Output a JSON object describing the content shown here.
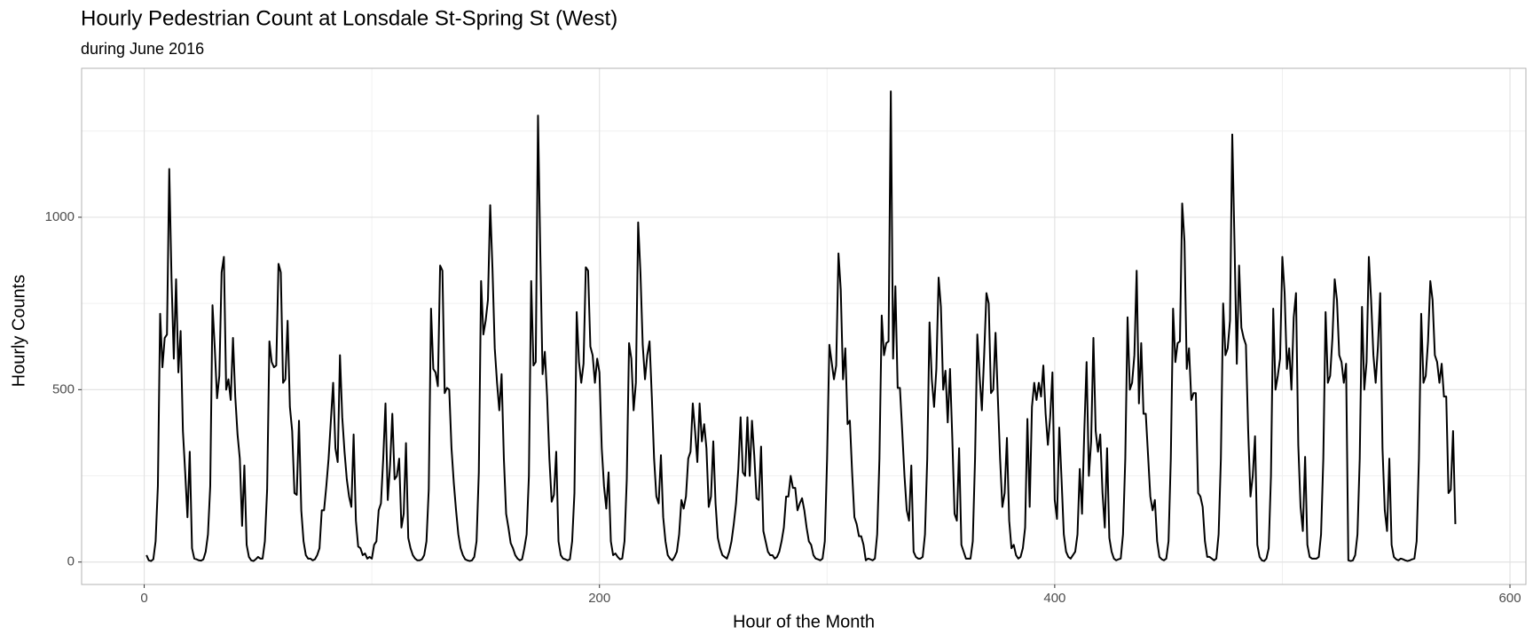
{
  "chart_data": {
    "type": "line",
    "title": "Hourly Pedestrian Count at Lonsdale St-Spring St (West)",
    "subtitle": "during June 2016",
    "xlabel": "Hour of the Month",
    "ylabel": "Hourly Counts",
    "color": "#000000",
    "grid": true,
    "xlim": [
      -27.5,
      607
    ],
    "ylim": [
      -65,
      1432
    ],
    "xticks": [
      0,
      200,
      400,
      600
    ],
    "yticks": [
      0,
      500,
      1000
    ],
    "x": [
      1,
      2,
      3,
      4,
      5,
      6,
      7,
      8,
      9,
      10,
      11,
      12,
      13,
      14,
      15,
      16,
      17,
      18,
      19,
      20,
      21,
      22,
      23,
      24,
      25,
      26,
      27,
      28,
      29,
      30,
      31,
      32,
      33,
      34,
      35,
      36,
      37,
      38,
      39,
      40,
      41,
      42,
      43,
      44,
      45,
      46,
      47,
      48,
      49,
      50,
      51,
      52,
      53,
      54,
      55,
      56,
      57,
      58,
      59,
      60,
      61,
      62,
      63,
      64,
      65,
      66,
      67,
      68,
      69,
      70,
      71,
      72,
      73,
      74,
      75,
      76,
      77,
      78,
      79,
      80,
      81,
      82,
      83,
      84,
      85,
      86,
      87,
      88,
      89,
      90,
      91,
      92,
      93,
      94,
      95,
      96,
      97,
      98,
      99,
      100,
      101,
      102,
      103,
      104,
      105,
      106,
      107,
      108,
      109,
      110,
      111,
      112,
      113,
      114,
      115,
      116,
      117,
      118,
      119,
      120,
      121,
      122,
      123,
      124,
      125,
      126,
      127,
      128,
      129,
      130,
      131,
      132,
      133,
      134,
      135,
      136,
      137,
      138,
      139,
      140,
      141,
      142,
      143,
      144,
      145,
      146,
      147,
      148,
      149,
      150,
      151,
      152,
      153,
      154,
      155,
      156,
      157,
      158,
      159,
      160,
      161,
      162,
      163,
      164,
      165,
      166,
      167,
      168,
      169,
      170,
      171,
      172,
      173,
      174,
      175,
      176,
      177,
      178,
      179,
      180,
      181,
      182,
      183,
      184,
      185,
      186,
      187,
      188,
      189,
      190,
      191,
      192,
      193,
      194,
      195,
      196,
      197,
      198,
      199,
      200,
      201,
      202,
      203,
      204,
      205,
      206,
      207,
      208,
      209,
      210,
      211,
      212,
      213,
      214,
      215,
      216,
      217,
      218,
      219,
      220,
      221,
      222,
      223,
      224,
      225,
      226,
      227,
      228,
      229,
      230,
      231,
      232,
      233,
      234,
      235,
      236,
      237,
      238,
      239,
      240,
      241,
      242,
      243,
      244,
      245,
      246,
      247,
      248,
      249,
      250,
      251,
      252,
      253,
      254,
      255,
      256,
      257,
      258,
      259,
      260,
      261,
      262,
      263,
      264,
      265,
      266,
      267,
      268,
      269,
      270,
      271,
      272,
      273,
      274,
      275,
      276,
      277,
      278,
      279,
      280,
      281,
      282,
      283,
      284,
      285,
      286,
      287,
      288,
      289,
      290,
      291,
      292,
      293,
      294,
      295,
      296,
      297,
      298,
      299,
      300,
      301,
      302,
      303,
      304,
      305,
      306,
      307,
      308,
      309,
      310,
      311,
      312,
      313,
      314,
      315,
      316,
      317,
      318,
      319,
      320,
      321,
      322,
      323,
      324,
      325,
      326,
      327,
      328,
      329,
      330,
      331,
      332,
      333,
      334,
      335,
      336,
      337,
      338,
      339,
      340,
      341,
      342,
      343,
      344,
      345,
      346,
      347,
      348,
      349,
      350,
      351,
      352,
      353,
      354,
      355,
      356,
      357,
      358,
      359,
      360,
      361,
      362,
      363,
      364,
      365,
      366,
      367,
      368,
      369,
      370,
      371,
      372,
      373,
      374,
      375,
      376,
      377,
      378,
      379,
      380,
      381,
      382,
      383,
      384,
      385,
      386,
      387,
      388,
      389,
      390,
      391,
      392,
      393,
      394,
      395,
      396,
      397,
      398,
      399,
      400,
      401,
      402,
      403,
      404,
      405,
      406,
      407,
      408,
      409,
      410,
      411,
      412,
      413,
      414,
      415,
      416,
      417,
      418,
      419,
      420,
      421,
      422,
      423,
      424,
      425,
      426,
      427,
      428,
      429,
      430,
      431,
      432,
      433,
      434,
      435,
      436,
      437,
      438,
      439,
      440,
      441,
      442,
      443,
      444,
      445,
      446,
      447,
      448,
      449,
      450,
      451,
      452,
      453,
      454,
      455,
      456,
      457,
      458,
      459,
      460,
      461,
      462,
      463,
      464,
      465,
      466,
      467,
      468,
      469,
      470,
      471,
      472,
      473,
      474,
      475,
      476,
      477,
      478,
      479,
      480,
      481,
      482,
      483,
      484,
      485,
      486,
      487,
      488,
      489,
      490,
      491,
      492,
      493,
      494,
      495,
      496,
      497,
      498,
      499,
      500,
      501,
      502,
      503,
      504,
      505,
      506,
      507,
      508,
      509,
      510,
      511,
      512,
      513,
      514,
      515,
      516,
      517,
      518,
      519,
      520,
      521,
      522,
      523,
      524,
      525,
      526,
      527,
      528,
      529,
      530,
      531,
      532,
      533,
      534,
      535,
      536,
      537,
      538,
      539,
      540,
      541,
      542,
      543,
      544,
      545,
      546,
      547,
      548,
      549,
      550,
      551,
      552,
      553,
      554,
      555,
      556,
      557,
      558,
      559,
      560,
      561,
      562,
      563,
      564,
      565,
      566,
      567,
      568,
      569,
      570,
      571,
      572,
      573,
      574,
      575,
      576
    ],
    "values": [
      20,
      5,
      3,
      8,
      60,
      220,
      720,
      565,
      650,
      660,
      1140,
      820,
      590,
      820,
      550,
      670,
      380,
      260,
      130,
      320,
      40,
      10,
      8,
      5,
      4,
      8,
      30,
      80,
      220,
      745,
      620,
      475,
      540,
      840,
      885,
      500,
      530,
      470,
      650,
      480,
      370,
      300,
      105,
      280,
      50,
      15,
      5,
      3,
      8,
      15,
      10,
      10,
      60,
      210,
      640,
      580,
      565,
      570,
      865,
      840,
      520,
      530,
      700,
      450,
      380,
      200,
      195,
      410,
      150,
      60,
      20,
      10,
      10,
      5,
      8,
      20,
      40,
      150,
      150,
      220,
      300,
      410,
      520,
      330,
      290,
      600,
      420,
      320,
      240,
      190,
      160,
      370,
      120,
      45,
      40,
      20,
      25,
      10,
      15,
      10,
      50,
      60,
      150,
      170,
      300,
      460,
      180,
      280,
      430,
      240,
      250,
      300,
      100,
      140,
      345,
      70,
      40,
      20,
      10,
      5,
      5,
      8,
      20,
      60,
      210,
      735,
      560,
      550,
      510,
      860,
      845,
      490,
      505,
      500,
      330,
      230,
      150,
      80,
      40,
      20,
      8,
      5,
      3,
      5,
      15,
      60,
      260,
      815,
      660,
      700,
      760,
      1035,
      850,
      620,
      520,
      440,
      545,
      300,
      140,
      100,
      55,
      40,
      20,
      10,
      5,
      8,
      40,
      80,
      250,
      815,
      570,
      580,
      1295,
      900,
      545,
      610,
      480,
      300,
      175,
      195,
      320,
      60,
      20,
      10,
      8,
      5,
      8,
      60,
      200,
      725,
      580,
      520,
      575,
      855,
      845,
      625,
      600,
      520,
      590,
      550,
      330,
      220,
      155,
      260,
      60,
      20,
      25,
      15,
      8,
      10,
      60,
      240,
      635,
      590,
      440,
      520,
      985,
      840,
      630,
      530,
      600,
      640,
      480,
      300,
      190,
      170,
      310,
      130,
      60,
      20,
      10,
      5,
      15,
      30,
      80,
      180,
      155,
      190,
      300,
      320,
      460,
      380,
      290,
      460,
      350,
      400,
      330,
      160,
      190,
      350,
      170,
      70,
      40,
      20,
      15,
      10,
      30,
      60,
      110,
      170,
      270,
      420,
      260,
      250,
      420,
      250,
      410,
      310,
      185,
      180,
      335,
      90,
      60,
      30,
      20,
      20,
      10,
      15,
      30,
      60,
      100,
      190,
      190,
      250,
      215,
      215,
      150,
      170,
      185,
      150,
      100,
      60,
      50,
      20,
      10,
      8,
      5,
      10,
      60,
      300,
      630,
      580,
      530,
      570,
      895,
      790,
      530,
      620,
      400,
      410,
      260,
      130,
      110,
      75,
      75,
      50,
      5,
      10,
      8,
      5,
      10,
      80,
      300,
      715,
      600,
      635,
      640,
      1365,
      590,
      800,
      505,
      505,
      380,
      250,
      150,
      120,
      280,
      30,
      15,
      10,
      10,
      15,
      80,
      300,
      695,
      530,
      450,
      560,
      825,
      740,
      500,
      555,
      405,
      560,
      360,
      140,
      120,
      330,
      50,
      30,
      10,
      10,
      10,
      60,
      300,
      660,
      540,
      440,
      600,
      780,
      750,
      490,
      500,
      665,
      480,
      300,
      160,
      200,
      360,
      120,
      40,
      50,
      20,
      10,
      15,
      40,
      100,
      415,
      160,
      450,
      520,
      470,
      520,
      480,
      570,
      430,
      340,
      420,
      550,
      180,
      125,
      390,
      240,
      80,
      30,
      15,
      10,
      20,
      30,
      80,
      270,
      140,
      380,
      580,
      250,
      350,
      650,
      380,
      320,
      370,
      200,
      100,
      330,
      70,
      30,
      10,
      5,
      8,
      10,
      80,
      300,
      710,
      500,
      520,
      600,
      845,
      460,
      635,
      430,
      430,
      310,
      190,
      150,
      180,
      60,
      15,
      8,
      5,
      10,
      60,
      300,
      735,
      580,
      635,
      640,
      1040,
      930,
      560,
      620,
      470,
      490,
      490,
      200,
      190,
      160,
      60,
      15,
      15,
      10,
      5,
      10,
      80,
      300,
      750,
      600,
      620,
      700,
      1240,
      920,
      575,
      860,
      680,
      650,
      630,
      380,
      190,
      250,
      365,
      50,
      15,
      5,
      3,
      10,
      40,
      250,
      735,
      500,
      540,
      590,
      885,
      780,
      560,
      620,
      500,
      710,
      780,
      340,
      160,
      90,
      305,
      50,
      15,
      10,
      10,
      10,
      15,
      80,
      300,
      725,
      520,
      540,
      650,
      820,
      760,
      600,
      580,
      520,
      575,
      5,
      3,
      5,
      20,
      80,
      300,
      740,
      500,
      580,
      885,
      760,
      600,
      520,
      625,
      780,
      330,
      150,
      90,
      300,
      50,
      15,
      8,
      5,
      10,
      8,
      5,
      3,
      5,
      8,
      10,
      60,
      300,
      720,
      520,
      540,
      640,
      815,
      760,
      600,
      580,
      520,
      575,
      480,
      480,
      200,
      210,
      380,
      110
    ]
  }
}
